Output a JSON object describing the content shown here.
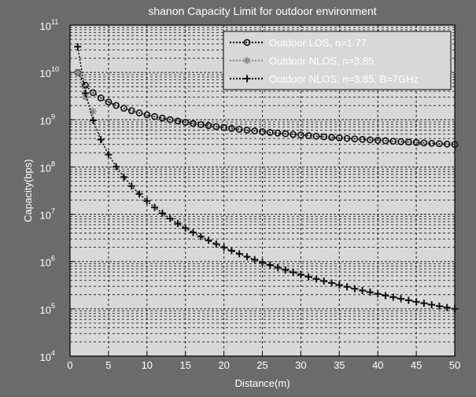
{
  "chart_data": {
    "type": "line",
    "title": "shanon Capacity Limit for outdoor environment",
    "xlabel": "Distance(m)",
    "ylabel": "Capacity(bps)",
    "x_scale": "linear",
    "y_scale": "log",
    "xlim": [
      0,
      50
    ],
    "ylim": [
      10000,
      100000000000
    ],
    "x_ticks": [
      0,
      5,
      10,
      15,
      20,
      25,
      30,
      35,
      40,
      45,
      50
    ],
    "x_tick_labels": [
      "0",
      "5",
      "10",
      "15",
      "20",
      "25",
      "30",
      "35",
      "40",
      "45",
      "50"
    ],
    "y_ticks": [
      10000,
      100000,
      1000000,
      10000000,
      100000000,
      1000000000,
      10000000000,
      100000000000
    ],
    "y_tick_labels": [
      {
        "base": "10",
        "exp": "4"
      },
      {
        "base": "10",
        "exp": "5"
      },
      {
        "base": "10",
        "exp": "6"
      },
      {
        "base": "10",
        "exp": "7"
      },
      {
        "base": "10",
        "exp": "8"
      },
      {
        "base": "10",
        "exp": "9"
      },
      {
        "base": "10",
        "exp": "10"
      },
      {
        "base": "10",
        "exp": "11"
      }
    ],
    "grid": true,
    "minor_grid": true,
    "legend_position": "top-right",
    "colors": {
      "plot_background": "#d8d8d8",
      "figure_background": "#6b6b6b",
      "grid": "#222222",
      "text": "#ffffff"
    },
    "series": [
      {
        "name": "Outdoor LOS, n=1.77",
        "color": "#111111",
        "marker": "circle",
        "line_style": "dotted",
        "x": [
          1,
          50
        ],
        "y": [
          10000000000,
          300000000
        ],
        "sampling": "power-law"
      },
      {
        "name": "Outdoor NLOS, n=3.85",
        "color": "#8a8a8a",
        "marker": "star",
        "line_style": "dotted",
        "x": [
          1,
          3
        ],
        "y": [
          10000000000,
          1500000000
        ],
        "sampling": "power-law"
      },
      {
        "name": "Outdoor NLOS, n=3.85, B=7GHz",
        "color": "#111111",
        "marker": "plus",
        "line_style": "dotted",
        "x": [
          1,
          50
        ],
        "y": [
          35000000000,
          100000
        ],
        "sampling": "power-law"
      }
    ]
  }
}
